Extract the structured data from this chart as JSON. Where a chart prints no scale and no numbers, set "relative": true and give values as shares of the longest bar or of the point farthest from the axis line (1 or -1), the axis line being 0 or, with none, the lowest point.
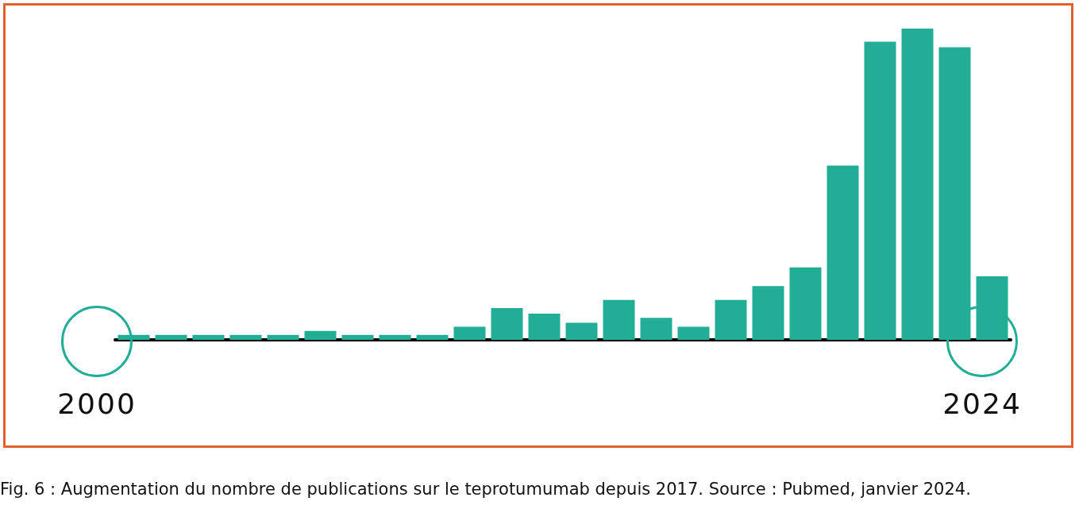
{
  "chart_data": {
    "type": "bar",
    "relative": true,
    "color": "#22ae96",
    "categories": [
      null,
      null,
      null,
      null,
      null,
      null,
      null,
      null,
      null,
      null,
      null,
      null,
      null,
      null,
      null,
      null,
      null,
      null,
      null,
      null,
      null,
      null,
      null,
      null
    ],
    "values": [
      0.016,
      0.016,
      0.016,
      0.016,
      0.016,
      0.029,
      0.016,
      0.016,
      0.016,
      0.042,
      0.102,
      0.084,
      0.055,
      0.128,
      0.071,
      0.042,
      0.128,
      0.173,
      0.233,
      0.56,
      0.958,
      1,
      0.94,
      0.204
    ],
    "annotations": [
      "2000",
      "2024",
      "Fig. 6 : Augmentation du nombre de publications sur le teprotumumab depuis 2017. Source : Pubmed, janvier 2024."
    ],
    "grid": false
  }
}
